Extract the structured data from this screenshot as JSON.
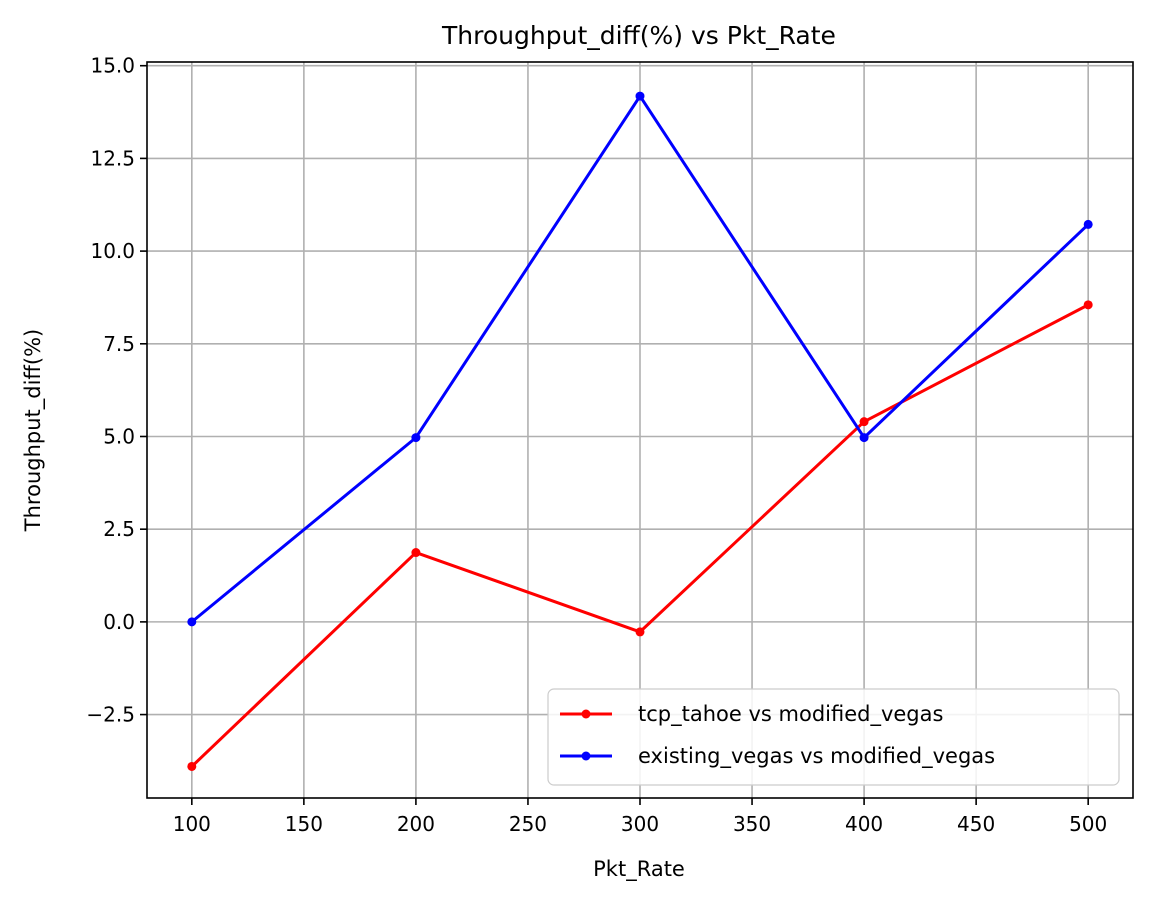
{
  "chart_data": {
    "type": "line",
    "title": "Throughput_diff(%) vs Pkt_Rate",
    "xlabel": "Pkt_Rate",
    "ylabel": "Throughput_diff(%)",
    "x": [
      100,
      200,
      300,
      400,
      500
    ],
    "xlim": [
      80,
      520
    ],
    "ylim": [
      -4.75,
      15.1
    ],
    "xticks": [
      100,
      150,
      200,
      250,
      300,
      350,
      400,
      450,
      500
    ],
    "xtick_labels": [
      "100",
      "150",
      "200",
      "250",
      "300",
      "350",
      "400",
      "450",
      "500"
    ],
    "yticks": [
      -2.5,
      0.0,
      2.5,
      5.0,
      7.5,
      10.0,
      12.5,
      15.0
    ],
    "ytick_labels": [
      "−2.5",
      "0.0",
      "2.5",
      "5.0",
      "7.5",
      "10.0",
      "12.5",
      "15.0"
    ],
    "grid": true,
    "legend_position": "lower-right",
    "series": [
      {
        "name": "tcp_tahoe vs modified_vegas",
        "color": "#ff0000",
        "marker": "circle",
        "values": [
          -3.9,
          1.87,
          -0.27,
          5.4,
          8.55
        ]
      },
      {
        "name": "existing_vegas vs modified_vegas",
        "color": "#0000ff",
        "marker": "circle",
        "values": [
          0.0,
          4.97,
          14.18,
          4.97,
          10.72
        ]
      }
    ]
  }
}
